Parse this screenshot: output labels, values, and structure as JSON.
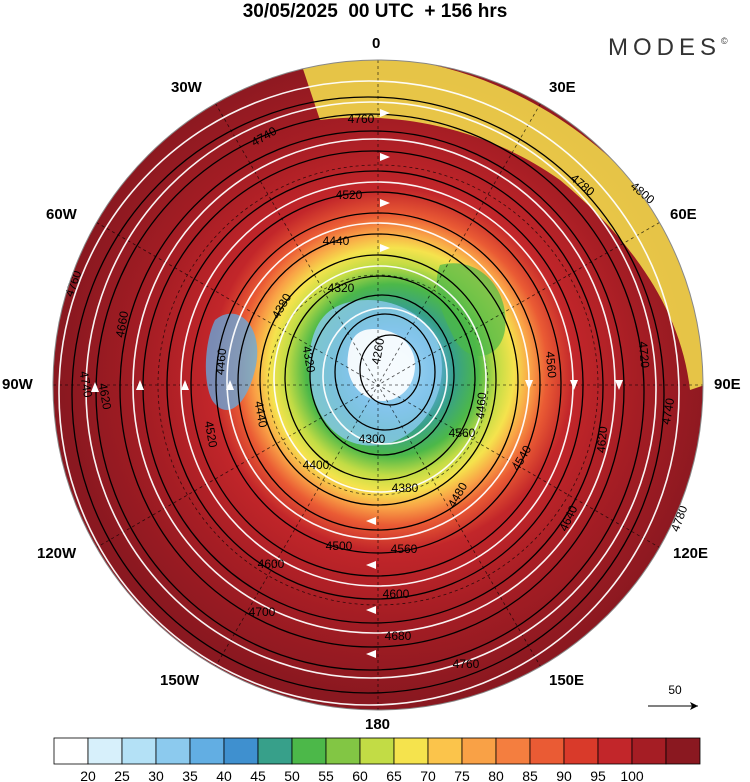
{
  "header": {
    "title": "30/05/2025  00 UTC  + 156 hrs",
    "brand": "MODES"
  },
  "map": {
    "projection": "north-polar-stereographic",
    "longitude_labels": {
      "top": "0",
      "top_right": "30E",
      "upper_right": "60E",
      "right": "90E",
      "lower_right": "120E",
      "bottom_right": "150E",
      "bottom": "180",
      "bottom_left": "150W",
      "lower_left": "120W",
      "left": "90W",
      "upper_left": "60W",
      "top_left": "30W"
    },
    "contour_labels": [
      "4260",
      "4300",
      "4320",
      "4320",
      "4380",
      "4380",
      "4400",
      "4440",
      "4440",
      "4460",
      "4460",
      "4480",
      "4500",
      "4520",
      "4520",
      "4540",
      "4560",
      "4560",
      "4560",
      "4600",
      "4600",
      "4620",
      "4620",
      "4640",
      "4660",
      "4680",
      "4700",
      "4720",
      "4740",
      "4740",
      "4740",
      "4760",
      "4760",
      "4760",
      "4780",
      "4780",
      "4800"
    ],
    "reference_vector_label": "50"
  },
  "colorbar": {
    "colors": [
      "#ffffff",
      "#d7f0fb",
      "#b4e1f6",
      "#8ccaee",
      "#62aee3",
      "#3f90cf",
      "#37a08a",
      "#4cb849",
      "#82c644",
      "#c2dc45",
      "#f5e34d",
      "#fbc44b",
      "#f9a146",
      "#f47e3f",
      "#ea5b34",
      "#d93a2a",
      "#c2262a",
      "#a51d24",
      "#8a1820"
    ],
    "tick_labels": [
      "20",
      "25",
      "30",
      "35",
      "40",
      "45",
      "50",
      "55",
      "60",
      "65",
      "70",
      "75",
      "80",
      "85",
      "90",
      "95",
      "100"
    ]
  }
}
